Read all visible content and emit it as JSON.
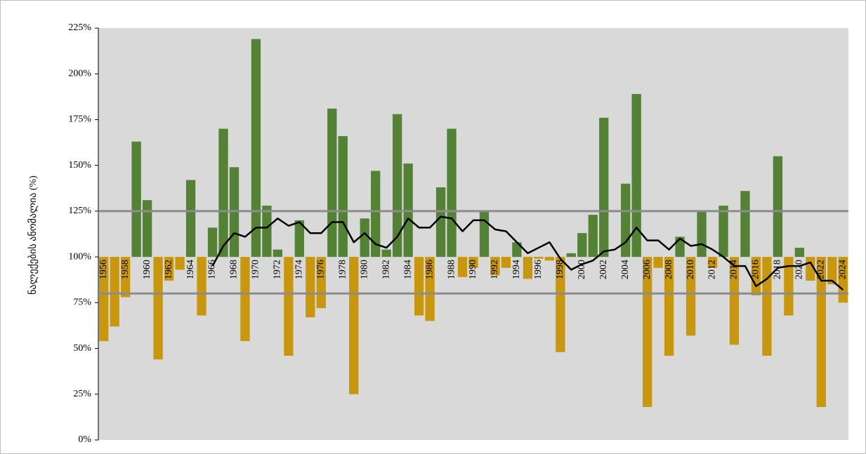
{
  "chart_data": {
    "type": "bar",
    "y_label": "ნალექების ანომალია (%)",
    "categories": [
      "1956",
      null,
      "1958",
      null,
      "1960",
      null,
      "1962",
      null,
      "1964",
      null,
      "1966",
      null,
      "1968",
      null,
      "1970",
      null,
      "1972",
      null,
      "1974",
      null,
      "1976",
      null,
      "1978",
      null,
      "1980",
      null,
      "1982",
      null,
      "1984",
      null,
      "1986",
      null,
      "1988",
      null,
      "1990",
      null,
      "1992",
      null,
      "1994",
      null,
      "1996",
      null,
      "1998",
      null,
      "2000",
      null,
      "2002",
      null,
      "2004",
      null,
      "2006",
      null,
      "2008",
      null,
      "2010",
      null,
      "2012",
      null,
      "2014",
      null,
      "2016",
      null,
      "2018",
      null,
      "2020",
      null,
      "2022",
      null,
      "2024"
    ],
    "series": [
      {
        "type": "bar",
        "color_above": "#548235",
        "color_below": "#c8970c",
        "values": [
          54,
          62,
          78,
          163,
          131,
          44,
          87,
          93,
          142,
          68,
          116,
          170,
          149,
          54,
          219,
          128,
          104,
          46,
          120,
          67,
          72,
          181,
          166,
          25,
          121,
          147,
          104,
          178,
          151,
          68,
          65,
          138,
          170,
          89,
          94,
          125,
          90,
          94,
          108,
          88,
          99,
          98,
          48,
          102,
          113,
          123,
          176,
          100,
          140,
          189,
          18,
          94,
          46,
          111,
          57,
          125,
          94,
          128,
          52,
          136,
          79,
          46,
          155,
          68,
          105,
          87,
          18,
          85,
          75
        ]
      },
      {
        "type": "line",
        "color": "#000000",
        "values": [
          null,
          null,
          null,
          null,
          null,
          null,
          null,
          null,
          null,
          null,
          95,
          106,
          113,
          111,
          116,
          116,
          121,
          117,
          119,
          113,
          113,
          119,
          119,
          108,
          113,
          107,
          105,
          111,
          121,
          116,
          116,
          122,
          121,
          114,
          120,
          120,
          115,
          114,
          108,
          102,
          105,
          108,
          99,
          93,
          96,
          98,
          103,
          104,
          108,
          116,
          109,
          109,
          104,
          110,
          106,
          107,
          104,
          100,
          95,
          95,
          84,
          88,
          94,
          95,
          95,
          97,
          87,
          87,
          82
        ]
      }
    ],
    "bar_base": 100,
    "reference_lines": {
      "values": [
        125,
        80
      ],
      "color": "#8c8c8c"
    },
    "background": "#d9d9d9",
    "ylim": [
      0,
      225
    ],
    "yticks": [
      {
        "value": 0,
        "label": "0%"
      },
      {
        "value": 25,
        "label": "25%"
      },
      {
        "value": 50,
        "label": "50%"
      },
      {
        "value": 75,
        "label": "75%"
      },
      {
        "value": 100,
        "label": "100%"
      },
      {
        "value": 125,
        "label": "125%"
      },
      {
        "value": 150,
        "label": "150%"
      },
      {
        "value": 175,
        "label": "175%"
      },
      {
        "value": 200,
        "label": "200%"
      },
      {
        "value": 225,
        "label": "225%"
      }
    ]
  }
}
